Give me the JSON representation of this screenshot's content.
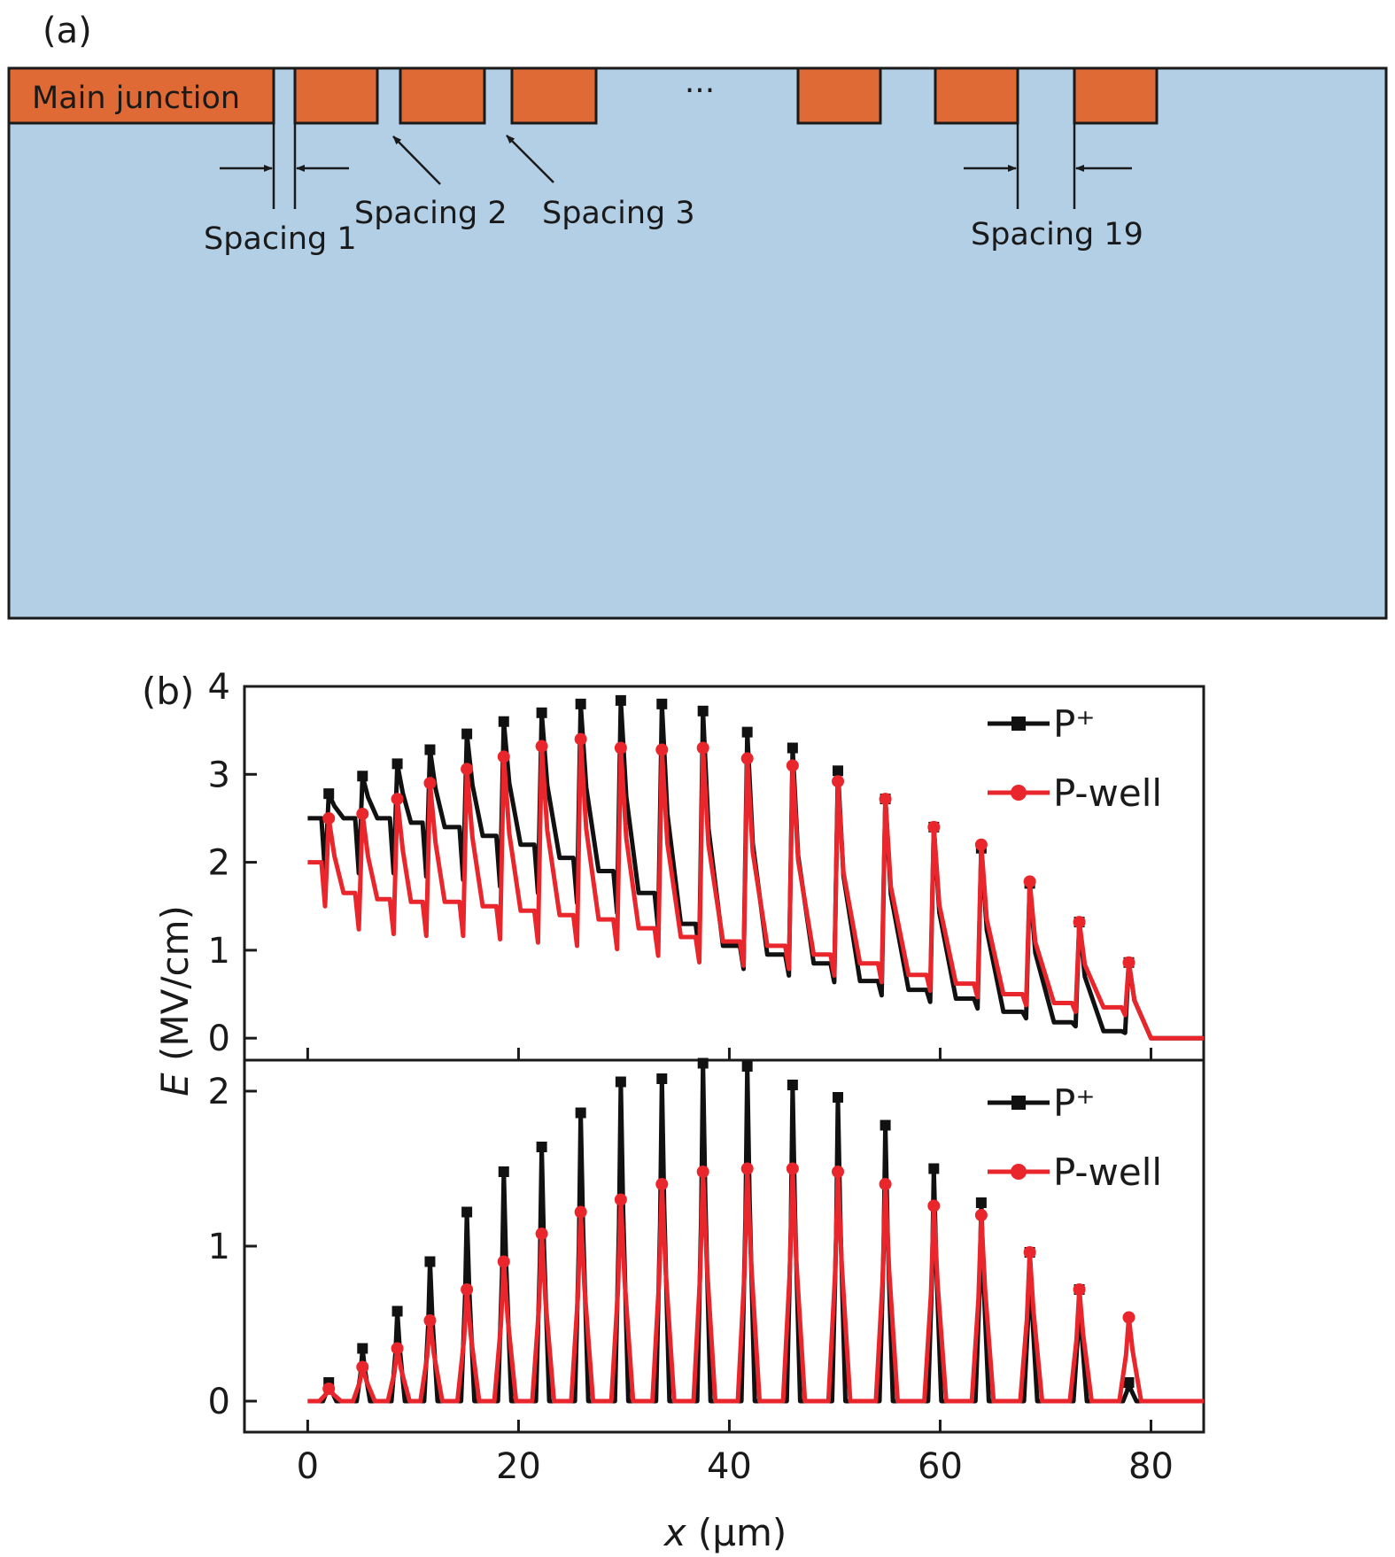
{
  "panel_a": {
    "label": "(a)",
    "main_junction_label": "Main junction",
    "ellipsis": "···",
    "spacing_labels": [
      "Spacing 1",
      "Spacing 2",
      "Spacing 3",
      "Spacing 19"
    ],
    "colors": {
      "substrate": "#b3cfe6",
      "junction": "#e06a35",
      "border": "#1a1a1a"
    }
  },
  "panel_b": {
    "label": "(b)",
    "ylabel_italic": "E",
    "ylabel_rest": " (MV/cm)",
    "xlabel_italic": "x",
    "xlabel_rest": " (μm)"
  },
  "chart_data": [
    {
      "type": "line",
      "title": "",
      "xlim": [
        -6,
        85
      ],
      "ylim": [
        -0.25,
        4
      ],
      "xticks": [
        0,
        20,
        40,
        60,
        80
      ],
      "yticks": [
        0,
        1,
        2,
        3,
        4
      ],
      "ytick_labels": [
        "0",
        "1",
        "2",
        "3",
        "4"
      ],
      "legend": {
        "placement": "top-right",
        "entries": [
          "P⁺",
          "P-well"
        ]
      },
      "series": [
        {
          "name": "P⁺",
          "color": "#111111",
          "marker": "square",
          "peaks_x": [
            2.0,
            5.2,
            8.5,
            11.6,
            15.1,
            18.6,
            22.2,
            25.9,
            29.7,
            33.6,
            37.5,
            41.7,
            46.0,
            50.3,
            54.8,
            59.4,
            63.9,
            68.5,
            73.2,
            77.9
          ],
          "peaks_y": [
            2.78,
            2.98,
            3.12,
            3.28,
            3.46,
            3.6,
            3.7,
            3.8,
            3.84,
            3.8,
            3.72,
            3.48,
            3.3,
            3.04,
            2.72,
            2.4,
            2.16,
            1.76,
            1.32,
            0.86
          ],
          "valleys_x": [
            0,
            3.4,
            6.6,
            9.8,
            13.0,
            16.6,
            20.2,
            23.9,
            27.6,
            31.4,
            35.4,
            39.4,
            43.6,
            48.0,
            52.4,
            57.0,
            61.5,
            66.0,
            70.8,
            75.5,
            80.0,
            85.0
          ],
          "valleys_y": [
            2.5,
            2.5,
            2.5,
            2.45,
            2.4,
            2.3,
            2.2,
            2.05,
            1.9,
            1.65,
            1.3,
            1.05,
            0.95,
            0.85,
            0.65,
            0.55,
            0.45,
            0.3,
            0.18,
            0.08,
            0,
            0
          ]
        },
        {
          "name": "P-well",
          "color": "#e8262b",
          "marker": "circle",
          "peaks_x": [
            2.0,
            5.2,
            8.5,
            11.6,
            15.1,
            18.6,
            22.2,
            25.9,
            29.7,
            33.6,
            37.5,
            41.7,
            46.0,
            50.3,
            54.8,
            59.4,
            63.9,
            68.5,
            73.2,
            77.9
          ],
          "peaks_y": [
            2.5,
            2.55,
            2.72,
            2.9,
            3.06,
            3.2,
            3.32,
            3.4,
            3.3,
            3.28,
            3.3,
            3.18,
            3.1,
            2.92,
            2.72,
            2.4,
            2.2,
            1.78,
            1.32,
            0.86
          ],
          "valleys_x": [
            0,
            3.4,
            6.6,
            9.8,
            13.0,
            16.6,
            20.2,
            23.9,
            27.6,
            31.4,
            35.4,
            39.4,
            43.6,
            48.0,
            52.4,
            57.0,
            61.5,
            66.0,
            70.8,
            75.5,
            80.0,
            85.0
          ],
          "valleys_y": [
            2.0,
            1.65,
            1.58,
            1.55,
            1.55,
            1.5,
            1.45,
            1.4,
            1.35,
            1.25,
            1.15,
            1.1,
            1.05,
            0.95,
            0.85,
            0.72,
            0.62,
            0.5,
            0.4,
            0.35,
            0,
            0
          ]
        }
      ]
    },
    {
      "type": "line",
      "title": "",
      "xlim": [
        -6,
        85
      ],
      "ylim": [
        -0.2,
        2.2
      ],
      "xticks": [
        0,
        20,
        40,
        60,
        80
      ],
      "xtick_labels": [
        "0",
        "20",
        "40",
        "60",
        "80"
      ],
      "yticks": [
        0,
        1,
        2
      ],
      "ytick_labels": [
        "0",
        "1",
        "2"
      ],
      "legend": {
        "placement": "top-right",
        "entries": [
          "P⁺",
          "P-well"
        ]
      },
      "series": [
        {
          "name": "P⁺",
          "color": "#111111",
          "marker": "square",
          "peaks_x": [
            2.0,
            5.2,
            8.5,
            11.6,
            15.1,
            18.6,
            22.2,
            25.9,
            29.7,
            33.6,
            37.5,
            41.7,
            46.0,
            50.3,
            54.8,
            59.4,
            63.9,
            68.5,
            73.2,
            77.9
          ],
          "peaks_y": [
            0.12,
            0.34,
            0.58,
            0.9,
            1.22,
            1.48,
            1.64,
            1.86,
            2.06,
            2.08,
            2.18,
            2.16,
            2.04,
            1.96,
            1.78,
            1.5,
            1.28,
            0.96,
            0.72,
            0.12
          ]
        },
        {
          "name": "P-well",
          "color": "#e8262b",
          "marker": "circle",
          "peaks_x": [
            2.0,
            5.2,
            8.5,
            11.6,
            15.1,
            18.6,
            22.2,
            25.9,
            29.7,
            33.6,
            37.5,
            41.7,
            46.0,
            50.3,
            54.8,
            59.4,
            63.9,
            68.5,
            73.2,
            77.9
          ],
          "peaks_y": [
            0.08,
            0.22,
            0.34,
            0.52,
            0.72,
            0.9,
            1.08,
            1.22,
            1.3,
            1.4,
            1.48,
            1.5,
            1.5,
            1.48,
            1.4,
            1.26,
            1.2,
            0.96,
            0.72,
            0.54
          ]
        }
      ]
    }
  ]
}
